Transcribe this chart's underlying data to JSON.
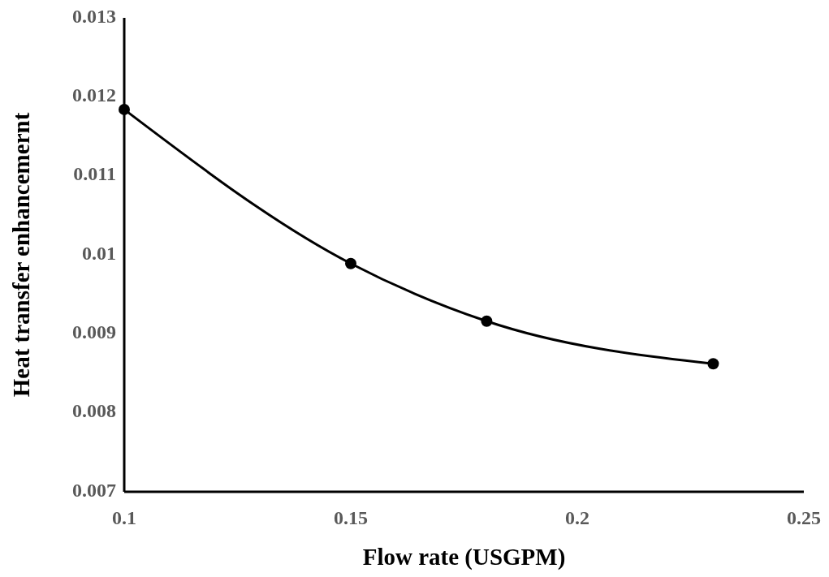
{
  "chart_data": {
    "type": "line",
    "xlabel": "Flow rate (USGPM)",
    "ylabel": "Heat transfer enhancemernt",
    "x": [
      0.1,
      0.15,
      0.18,
      0.23
    ],
    "series": [
      {
        "color": "#000000",
        "values": [
          0.01184,
          0.00989,
          0.00916,
          0.00862
        ]
      }
    ],
    "xlim": [
      0.1,
      0.25
    ],
    "xticks": [
      0.1,
      0.15,
      0.2,
      0.25
    ],
    "ylim": [
      0.007,
      0.013
    ],
    "yticks": [
      0.007,
      0.008,
      0.009,
      0.01,
      0.011,
      0.012,
      0.013
    ],
    "marker": "circle",
    "line_style": "solid",
    "grid": false
  }
}
